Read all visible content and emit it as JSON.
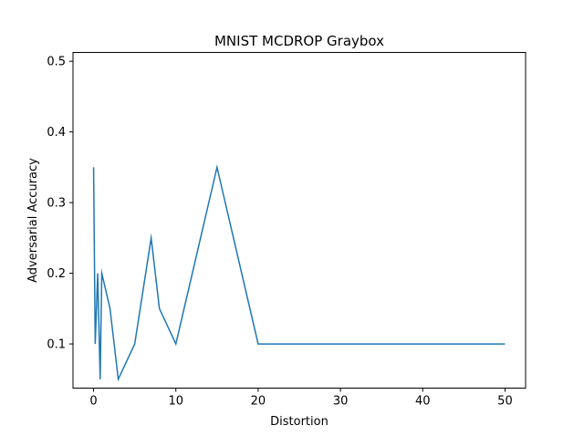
{
  "chart_data": {
    "type": "line",
    "title": "MNIST MCDROP Graybox",
    "xlabel": "Distortion",
    "ylabel": "Adversarial Accuracy",
    "xlim": [
      -2.5,
      52.5
    ],
    "ylim": [
      0.0375,
      0.5125
    ],
    "xticks": [
      0,
      10,
      20,
      30,
      40,
      50
    ],
    "yticks": [
      0.1,
      0.2,
      0.3,
      0.4,
      0.5
    ],
    "xtick_labels": [
      "0",
      "10",
      "20",
      "30",
      "40",
      "50"
    ],
    "ytick_labels": [
      "0.1",
      "0.2",
      "0.3",
      "0.4",
      "0.5"
    ],
    "grid": false,
    "line_color": "#1f77b4",
    "series": [
      {
        "x": [
          0,
          0.2,
          0.5,
          0.8,
          1,
          2,
          3,
          5,
          7,
          8,
          10,
          15,
          20,
          50
        ],
        "y": [
          0.35,
          0.1,
          0.2,
          0.05,
          0.2,
          0.15,
          0.05,
          0.1,
          0.25,
          0.15,
          0.1,
          0.35,
          0.1,
          0.1
        ]
      }
    ]
  }
}
